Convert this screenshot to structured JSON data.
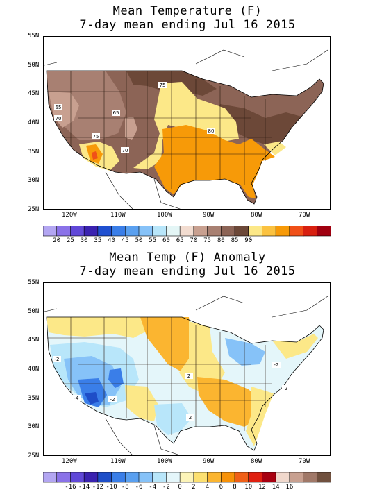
{
  "map1": {
    "title_line1": "Mean Temperature (F)",
    "title_line2": "7-day mean ending Jul 16 2015",
    "lat_labels": [
      "55N",
      "50N",
      "45N",
      "40N",
      "35N",
      "30N",
      "25N"
    ],
    "lon_labels": [
      "120W",
      "110W",
      "100W",
      "90W",
      "80W",
      "70W"
    ],
    "contour_labels": [
      "65",
      "70",
      "65",
      "75",
      "75",
      "70",
      "80"
    ],
    "legend": {
      "colors": [
        "#b3a6f2",
        "#8a72e8",
        "#6048d8",
        "#3a22b0",
        "#2050d0",
        "#3a7ee8",
        "#5aa0f0",
        "#86c2f8",
        "#b8e6fa",
        "#e4f6f6",
        "#f2dcd0",
        "#c8a090",
        "#a88072",
        "#8c6456",
        "#6c4838",
        "#fce888",
        "#fbc240",
        "#f79a08",
        "#f05018",
        "#d82010",
        "#a00010"
      ],
      "labels": [
        "20",
        "25",
        "30",
        "35",
        "40",
        "45",
        "50",
        "55",
        "60",
        "65",
        "70",
        "75",
        "80",
        "85",
        "90"
      ]
    }
  },
  "map2": {
    "title_line1": "Mean Temp (F) Anomaly",
    "title_line2": "7-day mean ending Jul 16 2015",
    "lat_labels": [
      "55N",
      "50N",
      "45N",
      "40N",
      "35N",
      "30N",
      "25N"
    ],
    "lon_labels": [
      "120W",
      "110W",
      "100W",
      "90W",
      "80W",
      "70W"
    ],
    "contour_labels": [
      "-2",
      "-4",
      "-2",
      "2",
      "2",
      "-2",
      "2"
    ],
    "legend": {
      "colors": [
        "#b3a6f2",
        "#8a72e8",
        "#6048d8",
        "#3a22b0",
        "#1e4ec8",
        "#3a7ee8",
        "#5aa0f0",
        "#86c2f8",
        "#b8e6fa",
        "#e4f6fa",
        "#fcf4b8",
        "#fce070",
        "#fbb530",
        "#f79208",
        "#f06018",
        "#e02010",
        "#a80010",
        "#f0d8cc",
        "#c8a090",
        "#a07868",
        "#70503e"
      ],
      "labels": [
        "-16",
        "-14",
        "-12",
        "-10",
        "-8",
        "-6",
        "-4",
        "-2",
        "0",
        "2",
        "4",
        "6",
        "8",
        "10",
        "12",
        "14",
        "16"
      ]
    }
  },
  "colors": {
    "brown_dark": "#6c4838",
    "brown_mid": "#8c6456",
    "brown_light": "#a88072",
    "tan": "#c8a090",
    "yellow": "#fce888",
    "orange": "#f79a08",
    "orange_light": "#fbc240",
    "anom_yellow": "#fce888",
    "anom_orange": "#fbb530",
    "anom_orange_dark": "#f79208",
    "anom_cyan": "#e4f6fa",
    "anom_lightblue": "#b8e6fa",
    "anom_blue1": "#86c2f8",
    "anom_blue2": "#5aa0f0",
    "anom_blue3": "#3a7ee8",
    "anom_blue4": "#1e4ec8"
  }
}
